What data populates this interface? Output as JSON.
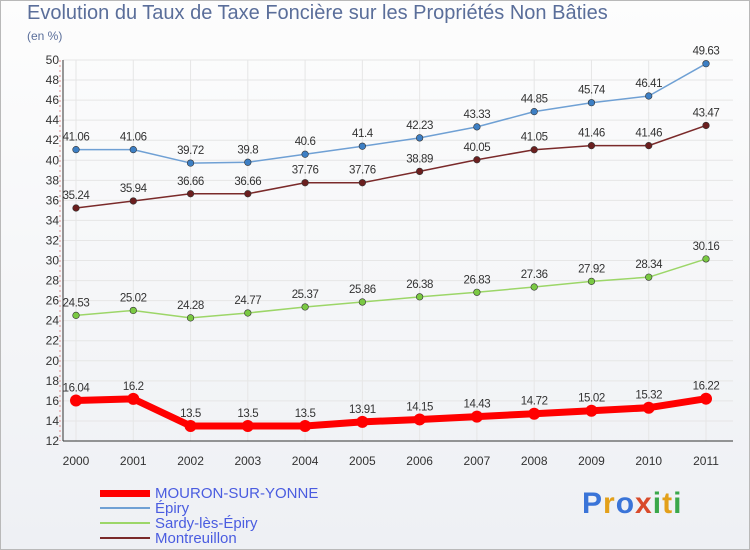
{
  "title": "Evolution du Taux de Taxe Foncière sur les Propriétés Non Bâties",
  "subtitle": "(en %)",
  "logo": {
    "letters": [
      "P",
      "r",
      "o",
      "x",
      "i",
      "t",
      "i"
    ],
    "colors": [
      "#3a74d8",
      "#e3a01a",
      "#3a74d8",
      "#d94a2a",
      "#3aa84a",
      "#e3a01a",
      "#3aa84a"
    ]
  },
  "chart_data": {
    "type": "line",
    "title": "Evolution du Taux de Taxe Foncière sur les Propriétés Non Bâties",
    "ylabel": "(en %)",
    "xlabel": "",
    "categories": [
      "2000",
      "2001",
      "2002",
      "2003",
      "2004",
      "2005",
      "2006",
      "2007",
      "2008",
      "2009",
      "2010",
      "2011"
    ],
    "ylim": [
      12,
      50
    ],
    "ytick_step": 2,
    "grid": true,
    "legend": "bottom-left",
    "series": [
      {
        "name": "MOURON-SUR-YONNE",
        "color": "#ff0000",
        "point_color": "#ff0000",
        "width": 7,
        "values": [
          16.04,
          16.2,
          13.5,
          13.5,
          13.5,
          13.91,
          14.15,
          14.43,
          14.72,
          15.02,
          15.32,
          16.22
        ],
        "labels": [
          "16.04",
          "16.2",
          "13.5",
          "13.5",
          "13.5",
          "13.91",
          "14.15",
          "14.43",
          "14.72",
          "15.02",
          "15.32",
          "16.22"
        ]
      },
      {
        "name": "Épiry",
        "color": "#6fa0d4",
        "point_color": "#3d7fc4",
        "width": 1.5,
        "values": [
          41.06,
          41.06,
          39.72,
          39.8,
          40.6,
          41.4,
          42.23,
          43.33,
          44.85,
          45.74,
          46.41,
          49.63
        ],
        "labels": [
          "41.06",
          "41.06",
          "39.72",
          "39.8",
          "40.6",
          "41.4",
          "42.23",
          "43.33",
          "44.85",
          "45.74",
          "46.41",
          "49.63"
        ]
      },
      {
        "name": "Sardy-lès-Épiry",
        "color": "#9cd668",
        "point_color": "#7ac943",
        "width": 1.5,
        "values": [
          24.53,
          25.02,
          24.28,
          24.77,
          25.37,
          25.86,
          26.38,
          26.83,
          27.36,
          27.92,
          28.34,
          30.16
        ],
        "labels": [
          "24.53",
          "25.02",
          "24.28",
          "24.77",
          "25.37",
          "25.86",
          "26.38",
          "26.83",
          "27.36",
          "27.92",
          "28.34",
          "30.16"
        ]
      },
      {
        "name": "Montreuillon",
        "color": "#7a2a2a",
        "point_color": "#6b1f1f",
        "width": 1.5,
        "values": [
          35.24,
          35.94,
          36.66,
          36.66,
          37.76,
          37.76,
          38.89,
          40.05,
          41.05,
          41.46,
          41.46,
          43.47
        ],
        "labels": [
          "35.24",
          "35.94",
          "36.66",
          "36.66",
          "37.76",
          "37.76",
          "38.89",
          "40.05",
          "41.05",
          "41.46",
          "41.46",
          "43.47"
        ]
      }
    ]
  }
}
